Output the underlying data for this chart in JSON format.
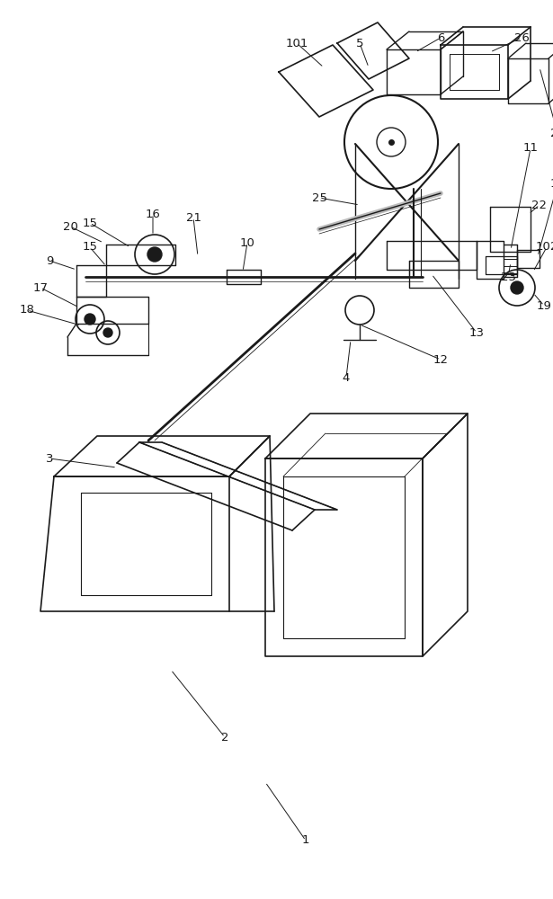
{
  "bg_color": "#ffffff",
  "line_color": "#1a1a1a",
  "label_fontsize": 9.5
}
